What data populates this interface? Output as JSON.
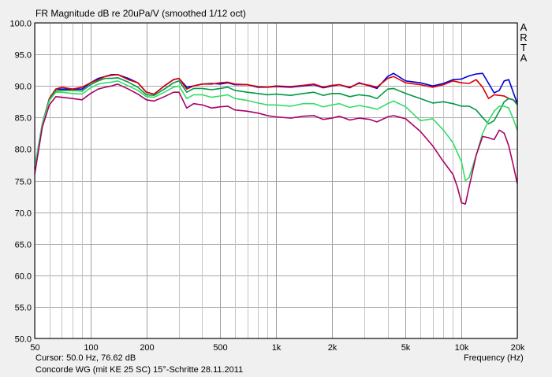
{
  "chart_data": {
    "type": "line",
    "title": "FR Magnitude dB re 20uPa/V (smoothed 1/12 oct)",
    "xlabel": "Frequency (Hz)",
    "ylabel": "",
    "xscale": "log",
    "xlim": [
      50,
      20000
    ],
    "ylim": [
      50,
      100
    ],
    "grid": true,
    "y_ticks": [
      {
        "v": 100,
        "label": "100.0"
      },
      {
        "v": 95,
        "label": "95.0"
      },
      {
        "v": 90,
        "label": "90.0"
      },
      {
        "v": 85,
        "label": "85.0"
      },
      {
        "v": 80,
        "label": "80.0"
      },
      {
        "v": 75,
        "label": "75.0"
      },
      {
        "v": 70,
        "label": "70.0"
      },
      {
        "v": 65,
        "label": "65.0"
      },
      {
        "v": 60,
        "label": "60.0"
      },
      {
        "v": 55,
        "label": "55.0"
      },
      {
        "v": 50,
        "label": "50.0"
      }
    ],
    "x_ticks": [
      {
        "v": 50,
        "label": "50"
      },
      {
        "v": 100,
        "label": "100"
      },
      {
        "v": 200,
        "label": "200"
      },
      {
        "v": 500,
        "label": "500"
      },
      {
        "v": 1000,
        "label": "1k"
      },
      {
        "v": 2000,
        "label": "2k"
      },
      {
        "v": 5000,
        "label": "5k"
      },
      {
        "v": 10000,
        "label": "10k"
      },
      {
        "v": 20000,
        "label": "20k"
      }
    ],
    "x_minor": [
      60,
      70,
      80,
      90,
      300,
      400,
      600,
      700,
      800,
      900,
      3000,
      4000,
      6000,
      7000,
      8000,
      9000
    ],
    "series": [
      {
        "color": "#0000dd",
        "points": [
          [
            50,
            77
          ],
          [
            55,
            84
          ],
          [
            60,
            88
          ],
          [
            65,
            89.5
          ],
          [
            70,
            89.5
          ],
          [
            80,
            89.5
          ],
          [
            90,
            89.5
          ],
          [
            100,
            90.5
          ],
          [
            110,
            91.2
          ],
          [
            120,
            91.5
          ],
          [
            130,
            91.8
          ],
          [
            140,
            91.8
          ],
          [
            160,
            91.2
          ],
          [
            180,
            90.5
          ],
          [
            200,
            89
          ],
          [
            220,
            88.7
          ],
          [
            250,
            90
          ],
          [
            280,
            91
          ],
          [
            300,
            91.2
          ],
          [
            330,
            89.8
          ],
          [
            360,
            90
          ],
          [
            400,
            90.3
          ],
          [
            450,
            90.4
          ],
          [
            500,
            90.3
          ],
          [
            550,
            90.5
          ],
          [
            600,
            90.2
          ],
          [
            700,
            90.2
          ],
          [
            800,
            89.8
          ],
          [
            900,
            89.8
          ],
          [
            1000,
            89.9
          ],
          [
            1200,
            89.8
          ],
          [
            1400,
            90
          ],
          [
            1600,
            90.2
          ],
          [
            1800,
            89.7
          ],
          [
            2000,
            90
          ],
          [
            2200,
            90.2
          ],
          [
            2500,
            89.7
          ],
          [
            2800,
            90.5
          ],
          [
            3200,
            90
          ],
          [
            3500,
            89.6
          ],
          [
            4000,
            91.5
          ],
          [
            4300,
            92
          ],
          [
            5000,
            90.8
          ],
          [
            6000,
            90.5
          ],
          [
            7000,
            90
          ],
          [
            8000,
            90.4
          ],
          [
            9000,
            91
          ],
          [
            10000,
            91.1
          ],
          [
            11000,
            91.6
          ],
          [
            12000,
            91.9
          ],
          [
            13000,
            92
          ],
          [
            14000,
            90.4
          ],
          [
            15000,
            88.9
          ],
          [
            16000,
            89.3
          ],
          [
            17000,
            90.8
          ],
          [
            18000,
            91
          ],
          [
            19000,
            89
          ],
          [
            20000,
            87.2
          ]
        ]
      },
      {
        "color": "#dd0000",
        "points": [
          [
            50,
            77
          ],
          [
            55,
            84
          ],
          [
            60,
            88
          ],
          [
            65,
            89.5
          ],
          [
            70,
            89.8
          ],
          [
            80,
            89.5
          ],
          [
            90,
            89.8
          ],
          [
            100,
            90.5
          ],
          [
            110,
            91
          ],
          [
            120,
            91.5
          ],
          [
            130,
            91.7
          ],
          [
            140,
            91.8
          ],
          [
            160,
            91
          ],
          [
            180,
            90.5
          ],
          [
            200,
            89
          ],
          [
            220,
            88.7
          ],
          [
            250,
            90
          ],
          [
            280,
            91
          ],
          [
            300,
            91.2
          ],
          [
            330,
            89.5
          ],
          [
            360,
            90
          ],
          [
            400,
            90.3
          ],
          [
            450,
            90.3
          ],
          [
            500,
            90.5
          ],
          [
            550,
            90.6
          ],
          [
            600,
            90.3
          ],
          [
            700,
            90.2
          ],
          [
            800,
            89.9
          ],
          [
            900,
            89.8
          ],
          [
            1000,
            90
          ],
          [
            1200,
            89.9
          ],
          [
            1400,
            90.1
          ],
          [
            1600,
            90.3
          ],
          [
            1800,
            89.8
          ],
          [
            2000,
            90.1
          ],
          [
            2200,
            90.2
          ],
          [
            2500,
            89.8
          ],
          [
            2800,
            90.4
          ],
          [
            3200,
            90.1
          ],
          [
            3500,
            89.8
          ],
          [
            4000,
            91.2
          ],
          [
            4300,
            91.5
          ],
          [
            5000,
            90.5
          ],
          [
            6000,
            90.2
          ],
          [
            7000,
            89.8
          ],
          [
            8000,
            90.2
          ],
          [
            9000,
            90.8
          ],
          [
            10000,
            90.5
          ],
          [
            11000,
            90.4
          ],
          [
            12000,
            91
          ],
          [
            13000,
            89.8
          ],
          [
            14000,
            88
          ],
          [
            15000,
            88.6
          ],
          [
            16000,
            88.5
          ],
          [
            17000,
            88.4
          ],
          [
            18000,
            88
          ],
          [
            19000,
            87.8
          ],
          [
            20000,
            87.2
          ]
        ]
      },
      {
        "color": "#009944",
        "points": [
          [
            50,
            77
          ],
          [
            55,
            84
          ],
          [
            60,
            87.8
          ],
          [
            65,
            89.2
          ],
          [
            70,
            89.3
          ],
          [
            80,
            89.3
          ],
          [
            90,
            89.2
          ],
          [
            100,
            90.2
          ],
          [
            110,
            90.8
          ],
          [
            120,
            91.2
          ],
          [
            130,
            91.2
          ],
          [
            140,
            91.3
          ],
          [
            160,
            90.6
          ],
          [
            180,
            89.8
          ],
          [
            200,
            88.6
          ],
          [
            220,
            88.5
          ],
          [
            250,
            89.5
          ],
          [
            280,
            90.5
          ],
          [
            300,
            90.8
          ],
          [
            330,
            89
          ],
          [
            360,
            89.6
          ],
          [
            400,
            89.6
          ],
          [
            450,
            89.4
          ],
          [
            500,
            89.6
          ],
          [
            550,
            89.8
          ],
          [
            600,
            89.3
          ],
          [
            700,
            89
          ],
          [
            800,
            88.8
          ],
          [
            900,
            88.6
          ],
          [
            1000,
            88.7
          ],
          [
            1200,
            88.5
          ],
          [
            1400,
            88.8
          ],
          [
            1600,
            89
          ],
          [
            1800,
            88.5
          ],
          [
            2000,
            88.8
          ],
          [
            2200,
            88.8
          ],
          [
            2500,
            88.3
          ],
          [
            2800,
            88.6
          ],
          [
            3200,
            88.4
          ],
          [
            3500,
            88
          ],
          [
            4000,
            89.5
          ],
          [
            4300,
            89.6
          ],
          [
            5000,
            88.8
          ],
          [
            6000,
            88
          ],
          [
            7000,
            87.3
          ],
          [
            8000,
            87.5
          ],
          [
            9000,
            87.2
          ],
          [
            10000,
            86.8
          ],
          [
            11000,
            86.8
          ],
          [
            12000,
            86.2
          ],
          [
            13000,
            85
          ],
          [
            14000,
            84
          ],
          [
            15000,
            84.5
          ],
          [
            16000,
            86
          ],
          [
            17000,
            87.5
          ],
          [
            18000,
            88
          ],
          [
            19000,
            87.8
          ],
          [
            20000,
            87
          ]
        ]
      },
      {
        "color": "#33dd66",
        "points": [
          [
            50,
            77
          ],
          [
            55,
            84
          ],
          [
            60,
            87.7
          ],
          [
            65,
            89
          ],
          [
            70,
            89
          ],
          [
            80,
            88.8
          ],
          [
            90,
            88.7
          ],
          [
            100,
            89.7
          ],
          [
            110,
            90.3
          ],
          [
            120,
            90.5
          ],
          [
            130,
            90.6
          ],
          [
            140,
            90.8
          ],
          [
            160,
            90
          ],
          [
            180,
            89.3
          ],
          [
            200,
            88.3
          ],
          [
            220,
            88.2
          ],
          [
            250,
            89
          ],
          [
            280,
            89.8
          ],
          [
            300,
            90
          ],
          [
            330,
            88
          ],
          [
            360,
            88.6
          ],
          [
            400,
            88.6
          ],
          [
            450,
            88.2
          ],
          [
            500,
            88.4
          ],
          [
            550,
            88.6
          ],
          [
            600,
            88
          ],
          [
            700,
            87.7
          ],
          [
            800,
            87.3
          ],
          [
            900,
            87
          ],
          [
            1000,
            87
          ],
          [
            1200,
            86.8
          ],
          [
            1400,
            87.2
          ],
          [
            1600,
            87.2
          ],
          [
            1800,
            86.7
          ],
          [
            2000,
            87
          ],
          [
            2200,
            87.2
          ],
          [
            2500,
            86.6
          ],
          [
            2800,
            86.9
          ],
          [
            3200,
            86.6
          ],
          [
            3500,
            86.3
          ],
          [
            4000,
            87.2
          ],
          [
            4300,
            87.6
          ],
          [
            5000,
            86.7
          ],
          [
            6000,
            84.5
          ],
          [
            7000,
            84.8
          ],
          [
            8000,
            83
          ],
          [
            9000,
            81
          ],
          [
            10000,
            78
          ],
          [
            10500,
            75
          ],
          [
            11000,
            75.5
          ],
          [
            12000,
            79
          ],
          [
            13000,
            82.5
          ],
          [
            14000,
            84.5
          ],
          [
            15000,
            86
          ],
          [
            16000,
            86.8
          ],
          [
            17000,
            86.8
          ],
          [
            18000,
            86.5
          ],
          [
            19000,
            84.8
          ],
          [
            20000,
            83
          ]
        ]
      },
      {
        "color": "#aa0066",
        "points": [
          [
            50,
            76
          ],
          [
            55,
            83.5
          ],
          [
            60,
            87
          ],
          [
            65,
            88.3
          ],
          [
            70,
            88.2
          ],
          [
            80,
            88
          ],
          [
            90,
            87.8
          ],
          [
            100,
            88.8
          ],
          [
            110,
            89.5
          ],
          [
            120,
            89.8
          ],
          [
            130,
            90
          ],
          [
            140,
            90.3
          ],
          [
            160,
            89.5
          ],
          [
            180,
            88.7
          ],
          [
            200,
            87.8
          ],
          [
            220,
            87.6
          ],
          [
            250,
            88.3
          ],
          [
            280,
            89
          ],
          [
            300,
            89
          ],
          [
            330,
            86.5
          ],
          [
            360,
            87.2
          ],
          [
            400,
            87
          ],
          [
            450,
            86.5
          ],
          [
            500,
            86.7
          ],
          [
            550,
            86.8
          ],
          [
            600,
            86.2
          ],
          [
            700,
            86
          ],
          [
            800,
            85.7
          ],
          [
            900,
            85.3
          ],
          [
            1000,
            85.1
          ],
          [
            1200,
            84.9
          ],
          [
            1400,
            85.2
          ],
          [
            1600,
            85.3
          ],
          [
            1800,
            84.7
          ],
          [
            2000,
            84.9
          ],
          [
            2200,
            85.2
          ],
          [
            2500,
            84.6
          ],
          [
            2800,
            84.9
          ],
          [
            3200,
            84.7
          ],
          [
            3500,
            84.3
          ],
          [
            4000,
            85.1
          ],
          [
            4300,
            85.3
          ],
          [
            5000,
            84.8
          ],
          [
            6000,
            82.8
          ],
          [
            7000,
            80.5
          ],
          [
            8000,
            78
          ],
          [
            9000,
            76
          ],
          [
            9500,
            74
          ],
          [
            10000,
            71.5
          ],
          [
            10500,
            71.3
          ],
          [
            11000,
            74
          ],
          [
            12000,
            79
          ],
          [
            13000,
            82
          ],
          [
            14000,
            81.8
          ],
          [
            15000,
            81.5
          ],
          [
            16000,
            83
          ],
          [
            17000,
            82.5
          ],
          [
            18000,
            80.5
          ],
          [
            19000,
            77.5
          ],
          [
            20000,
            74.5
          ]
        ]
      }
    ]
  },
  "header": {
    "title": "FR Magnitude dB re 20uPa/V (smoothed 1/12 oct)",
    "brand_letters": [
      "A",
      "R",
      "T",
      "A"
    ]
  },
  "footer": {
    "cursor": "Cursor: 50.0 Hz, 76.62 dB",
    "caption": "Concorde WG (mit KE 25 SC) 15°-Schritte 28.11.2011"
  }
}
